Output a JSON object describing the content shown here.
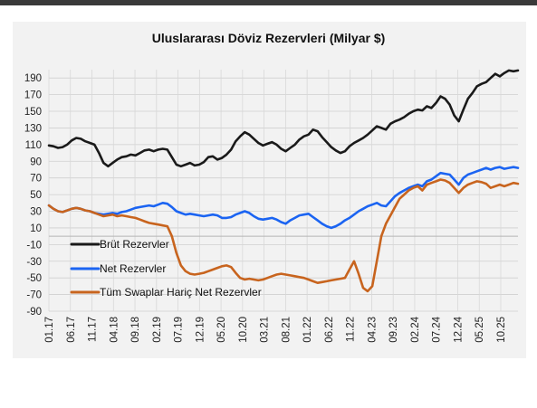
{
  "chart_data": {
    "type": "line",
    "title": "Uluslararası Döviz Rezervleri (Milyar $)",
    "xlabel": "",
    "ylabel": "",
    "ylim": [
      -90,
      200
    ],
    "yticks": [
      190,
      170,
      150,
      130,
      110,
      90,
      70,
      50,
      30,
      10,
      -10,
      -30,
      -50,
      -70,
      -90
    ],
    "xtick_labels": [
      "01.17",
      "06.17",
      "11.17",
      "04.18",
      "09.18",
      "02.19",
      "07.19",
      "12.19",
      "05.20",
      "10.20",
      "03.21",
      "08.21",
      "01.22",
      "06.22",
      "11.22",
      "04.23",
      "09.23",
      "02.24",
      "07.24",
      "12.24",
      "05.25",
      "10.25"
    ],
    "grid": true,
    "legend_position": "lower-left",
    "series": [
      {
        "name": "Brüt Rezervler",
        "color": "#1a1a1a",
        "x": [
          0,
          2,
          4,
          6,
          8,
          10,
          12,
          14,
          16,
          18,
          20,
          22,
          24,
          26,
          28,
          30,
          32,
          34,
          36,
          38,
          40,
          42,
          44,
          46,
          48,
          50,
          52,
          54,
          56,
          58,
          60,
          62,
          64,
          66,
          68,
          70,
          72,
          74,
          76,
          78,
          80,
          82,
          84,
          86,
          88,
          90,
          92,
          94,
          96,
          98,
          100,
          102,
          104,
          106,
          108,
          110,
          112,
          114,
          116,
          118,
          120,
          122,
          124,
          126,
          128,
          130,
          132,
          134,
          136,
          138,
          140,
          142,
          144,
          146,
          148,
          150,
          152,
          154,
          156,
          158,
          160,
          162,
          164,
          166,
          168,
          170,
          172,
          174,
          176,
          178,
          180,
          182,
          184,
          186,
          188,
          190,
          192,
          194,
          196,
          198,
          200,
          202,
          204,
          206
        ],
        "values": [
          109,
          108,
          106,
          107,
          110,
          115,
          118,
          117,
          114,
          112,
          110,
          100,
          88,
          84,
          88,
          92,
          95,
          96,
          98,
          97,
          100,
          103,
          104,
          102,
          104,
          105,
          104,
          95,
          86,
          84,
          86,
          88,
          85,
          86,
          89,
          95,
          96,
          92,
          94,
          98,
          104,
          114,
          120,
          125,
          122,
          117,
          112,
          109,
          111,
          113,
          110,
          105,
          102,
          106,
          110,
          116,
          120,
          122,
          128,
          126,
          119,
          113,
          107,
          103,
          100,
          102,
          108,
          112,
          115,
          118,
          122,
          127,
          132,
          130,
          128,
          135,
          138,
          140,
          143,
          147,
          150,
          152,
          151,
          156,
          154,
          160,
          168,
          165,
          158,
          145,
          138,
          152,
          165,
          172,
          180,
          183,
          185,
          190,
          195,
          192,
          196,
          199,
          198,
          199
        ]
      },
      {
        "name": "Net Rezervler",
        "color": "#1b64f2",
        "x": [
          0,
          2,
          4,
          6,
          8,
          10,
          12,
          14,
          16,
          18,
          20,
          22,
          24,
          26,
          28,
          30,
          32,
          34,
          36,
          38,
          40,
          42,
          44,
          46,
          48,
          50,
          52,
          54,
          56,
          58,
          60,
          62,
          64,
          66,
          68,
          70,
          72,
          74,
          76,
          78,
          80,
          82,
          84,
          86,
          88,
          90,
          92,
          94,
          96,
          98,
          100,
          102,
          104,
          106,
          108,
          110,
          112,
          114,
          116,
          118,
          120,
          122,
          124,
          126,
          128,
          130,
          132,
          134,
          136,
          138,
          140,
          142,
          144,
          146,
          148,
          150,
          152,
          154,
          156,
          158,
          160,
          162,
          164,
          166,
          168,
          170,
          172,
          174,
          176,
          178,
          180,
          182,
          184,
          186,
          188,
          190,
          192,
          194,
          196,
          198,
          200,
          202,
          204,
          206
        ],
        "values": [
          37,
          33,
          30,
          29,
          31,
          33,
          34,
          33,
          31,
          30,
          28,
          27,
          26,
          27,
          28,
          27,
          29,
          30,
          32,
          34,
          35,
          36,
          37,
          36,
          38,
          40,
          39,
          35,
          30,
          28,
          26,
          27,
          26,
          25,
          24,
          25,
          26,
          25,
          22,
          22,
          23,
          26,
          28,
          30,
          28,
          24,
          21,
          20,
          21,
          22,
          20,
          17,
          15,
          19,
          22,
          25,
          26,
          27,
          23,
          19,
          15,
          12,
          10,
          12,
          15,
          19,
          22,
          26,
          30,
          33,
          36,
          38,
          40,
          37,
          36,
          42,
          48,
          52,
          55,
          58,
          60,
          62,
          60,
          66,
          68,
          72,
          76,
          75,
          74,
          68,
          62,
          70,
          74,
          76,
          78,
          80,
          82,
          80,
          82,
          83,
          81,
          82,
          83,
          82
        ]
      },
      {
        "name": "Tüm Swaplar Hariç Net Rezervler",
        "color": "#c8641e",
        "x": [
          0,
          2,
          4,
          6,
          8,
          10,
          12,
          14,
          16,
          18,
          20,
          22,
          24,
          26,
          28,
          30,
          32,
          34,
          36,
          38,
          40,
          42,
          44,
          46,
          48,
          50,
          52,
          54,
          56,
          58,
          60,
          62,
          64,
          66,
          68,
          70,
          72,
          74,
          76,
          78,
          80,
          82,
          84,
          86,
          88,
          90,
          92,
          94,
          96,
          98,
          100,
          102,
          104,
          106,
          108,
          110,
          112,
          114,
          116,
          118,
          120,
          122,
          124,
          126,
          128,
          130,
          132,
          134,
          136,
          138,
          140,
          142,
          144,
          146,
          148,
          150,
          152,
          154,
          156,
          158,
          160,
          162,
          164,
          166,
          168,
          170,
          172,
          174,
          176,
          178,
          180,
          182,
          184,
          186,
          188,
          190,
          192,
          194,
          196,
          198,
          200,
          202,
          204,
          206
        ],
        "values": [
          37,
          33,
          30,
          29,
          31,
          33,
          34,
          33,
          31,
          30,
          28,
          26,
          24,
          25,
          26,
          24,
          25,
          24,
          23,
          22,
          20,
          18,
          16,
          15,
          14,
          13,
          12,
          0,
          -20,
          -35,
          -42,
          -45,
          -46,
          -45,
          -44,
          -42,
          -40,
          -38,
          -36,
          -35,
          -37,
          -44,
          -50,
          -52,
          -51,
          -52,
          -53,
          -52,
          -50,
          -48,
          -46,
          -45,
          -46,
          -47,
          -48,
          -49,
          -50,
          -52,
          -54,
          -56,
          -55,
          -54,
          -53,
          -52,
          -51,
          -50,
          -40,
          -30,
          -45,
          -62,
          -66,
          -60,
          -30,
          0,
          15,
          25,
          35,
          45,
          50,
          55,
          58,
          60,
          55,
          62,
          64,
          66,
          68,
          67,
          64,
          58,
          52,
          58,
          62,
          64,
          66,
          65,
          63,
          58,
          60,
          62,
          60,
          62,
          64,
          63
        ]
      }
    ]
  }
}
